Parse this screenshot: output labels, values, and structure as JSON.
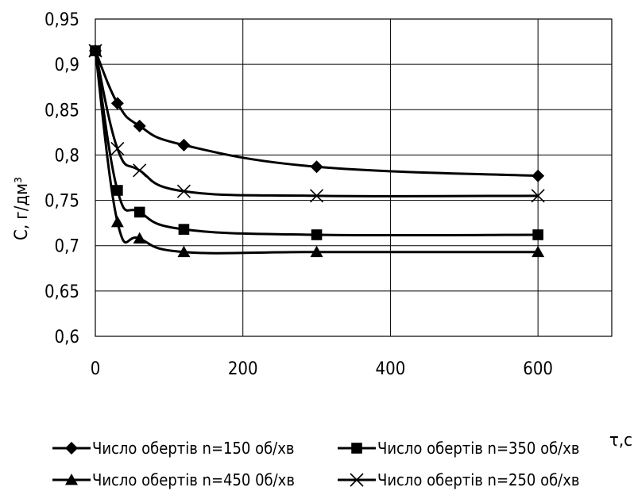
{
  "chart_data": {
    "type": "line",
    "title": "",
    "xlabel": "τ,с",
    "ylabel": "С, г/дм³",
    "xlim": [
      0,
      700
    ],
    "ylim": [
      0.6,
      0.95
    ],
    "x_ticks": [
      "0",
      "200",
      "400",
      "600"
    ],
    "y_ticks": [
      "0,6",
      "0,65",
      "0,7",
      "0,75",
      "0,8",
      "0,85",
      "0,9",
      "0,95"
    ],
    "grid": "major vertical and horizontal",
    "legend_position": "bottom",
    "x": [
      0,
      30,
      60,
      120,
      300,
      600
    ],
    "series": [
      {
        "name": "Число обертів n=150 об/хв",
        "marker": "diamond",
        "values": [
          0.915,
          0.857,
          0.832,
          0.811,
          0.787,
          0.777
        ]
      },
      {
        "name": "Число обертів n=350 об/хв",
        "marker": "square",
        "values": [
          0.915,
          0.761,
          0.737,
          0.718,
          0.712,
          0.712
        ]
      },
      {
        "name": "Число обертів n=450 0б/хв",
        "marker": "triangle",
        "values": [
          0.915,
          0.726,
          0.708,
          0.693,
          0.693,
          0.693
        ]
      },
      {
        "name": "Число обертів n=250 об/хв",
        "marker": "cross",
        "values": [
          0.915,
          0.807,
          0.783,
          0.76,
          0.755,
          0.755
        ]
      }
    ]
  }
}
